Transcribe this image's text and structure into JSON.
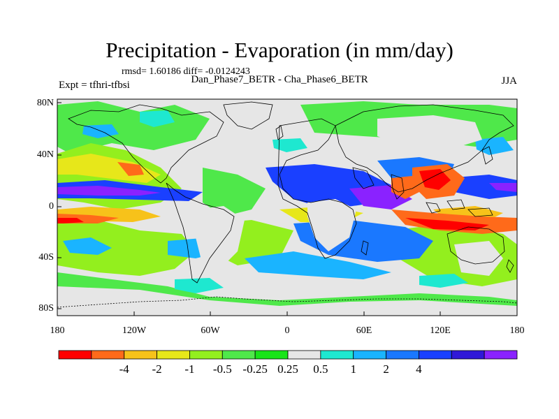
{
  "title": "Precipitation - Evaporation (in mm/day)",
  "stats": "rmsd= 1.60186 diff= -0.0124243",
  "subtitle": "Dan_Phase7_BETR - Cha_Phase6_BETR",
  "left_label": "Expt = tfhri-tfbsi",
  "right_label": "JJA",
  "y_axis_labels": [
    "80N",
    "40N",
    "0",
    "40S",
    "80S"
  ],
  "x_axis_labels": [
    "180",
    "120W",
    "60W",
    "0",
    "60E",
    "120E",
    "180"
  ],
  "colorbar": {
    "colors": [
      "#ff0000",
      "#ff6a1a",
      "#f7c21a",
      "#e7e71a",
      "#93ef1e",
      "#4fe84a",
      "#18e418",
      "#e6e6e6",
      "#1ee8d0",
      "#1ab4ff",
      "#1a78ff",
      "#1a40ff",
      "#3018d8",
      "#8a22ff"
    ],
    "labels": [
      "-4",
      "-2",
      "-1",
      "-0.5",
      "-0.25",
      "0.25",
      "0.5",
      "1",
      "2",
      "4"
    ]
  }
}
